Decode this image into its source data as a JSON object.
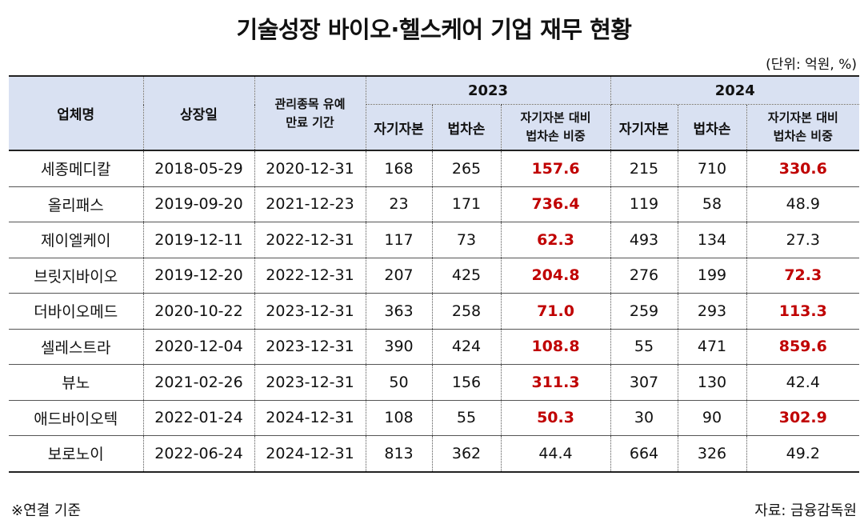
{
  "title": "기술성장 바이오·헬스케어 기업 재무 현황",
  "unit": "(단위: 억원, %)",
  "header": {
    "company": "업체명",
    "listing_date": "상장일",
    "grace_line1": "관리종목 유예",
    "grace_line2": "만료 기간",
    "year1": "2023",
    "year2": "2024",
    "equity": "자기자본",
    "pretax_loss": "법차손",
    "ratio_line1": "자기자본 대비",
    "ratio_line2": "법차손 비중"
  },
  "rows": [
    {
      "name": "세종메디칼",
      "listed": "2018-05-29",
      "expiry": "2020-12-31",
      "eq23": "168",
      "loss23": "265",
      "ratio23": "157.6",
      "eq24": "215",
      "loss24": "710",
      "ratio24": "330.6"
    },
    {
      "name": "올리패스",
      "listed": "2019-09-20",
      "expiry": "2021-12-23",
      "eq23": "23",
      "loss23": "171",
      "ratio23": "736.4",
      "eq24": "119",
      "loss24": "58",
      "ratio24": "48.9"
    },
    {
      "name": "제이엘케이",
      "listed": "2019-12-11",
      "expiry": "2022-12-31",
      "eq23": "117",
      "loss23": "73",
      "ratio23": "62.3",
      "eq24": "493",
      "loss24": "134",
      "ratio24": "27.3"
    },
    {
      "name": "브릿지바이오",
      "listed": "2019-12-20",
      "expiry": "2022-12-31",
      "eq23": "207",
      "loss23": "425",
      "ratio23": "204.8",
      "eq24": "276",
      "loss24": "199",
      "ratio24": "72.3"
    },
    {
      "name": "더바이오메드",
      "listed": "2020-10-22",
      "expiry": "2023-12-31",
      "eq23": "363",
      "loss23": "258",
      "ratio23": "71.0",
      "eq24": "259",
      "loss24": "293",
      "ratio24": "113.3"
    },
    {
      "name": "셀레스트라",
      "listed": "2020-12-04",
      "expiry": "2023-12-31",
      "eq23": "390",
      "loss23": "424",
      "ratio23": "108.8",
      "eq24": "55",
      "loss24": "471",
      "ratio24": "859.6"
    },
    {
      "name": "뷰노",
      "listed": "2021-02-26",
      "expiry": "2023-12-31",
      "eq23": "50",
      "loss23": "156",
      "ratio23": "311.3",
      "eq24": "307",
      "loss24": "130",
      "ratio24": "42.4"
    },
    {
      "name": "애드바이오텍",
      "listed": "2022-01-24",
      "expiry": "2024-12-31",
      "eq23": "108",
      "loss23": "55",
      "ratio23": "50.3",
      "eq24": "30",
      "loss24": "90",
      "ratio24": "302.9"
    },
    {
      "name": "보로노이",
      "listed": "2022-06-24",
      "expiry": "2024-12-31",
      "eq23": "813",
      "loss23": "362",
      "ratio23": "44.4",
      "eq24": "664",
      "loss24": "326",
      "ratio24": "49.2"
    }
  ],
  "highlight_color": "#c00000",
  "header_bg": "#d9e1f2",
  "note": "※연결 기준",
  "source": "자료: 금융감독원"
}
